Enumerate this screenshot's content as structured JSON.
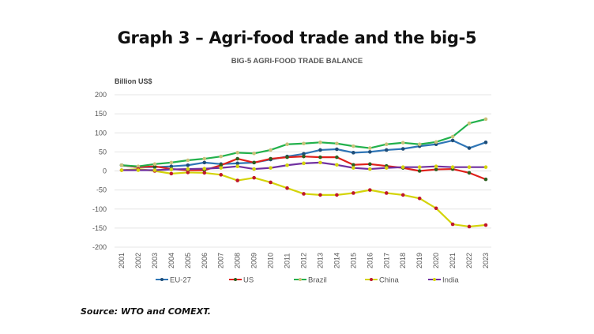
{
  "header": {
    "title": "Graph 3 – Agri-food trade and the big-5"
  },
  "footer": {
    "source": "Source: WTO and COMEXT."
  },
  "chart_data": {
    "type": "line",
    "title": "BIG-5 AGRI-FOOD TRADE BALANCE",
    "xlabel": "",
    "ylabel": "Billion US$",
    "ylim": [
      -200,
      200
    ],
    "yticks": [
      200,
      150,
      100,
      50,
      0,
      -50,
      -100,
      -150,
      -200
    ],
    "grid": true,
    "legend_position": "bottom",
    "x": [
      "2001",
      "2002",
      "2003",
      "2004",
      "2005",
      "2006",
      "2007",
      "2008",
      "2009",
      "2010",
      "2011",
      "2012",
      "2013",
      "2014",
      "2015",
      "2016",
      "2017",
      "2018",
      "2019",
      "2020",
      "2021",
      "2022",
      "2023"
    ],
    "series": [
      {
        "name": "EU-27",
        "color": "#2E75B6",
        "marker": "#1F4E79",
        "values": [
          15,
          10,
          10,
          12,
          15,
          22,
          18,
          20,
          22,
          30,
          38,
          45,
          55,
          57,
          48,
          50,
          55,
          58,
          65,
          70,
          80,
          60,
          75
        ]
      },
      {
        "name": "US",
        "color": "#E0201B",
        "marker": "#2E5E1E",
        "values": [
          15,
          10,
          12,
          5,
          2,
          2,
          15,
          32,
          22,
          32,
          36,
          38,
          36,
          36,
          16,
          18,
          13,
          8,
          0,
          4,
          5,
          -5,
          -22
        ]
      },
      {
        "name": "Brazil",
        "color": "#22B14C",
        "marker": "#C9C27A",
        "values": [
          15,
          12,
          18,
          22,
          28,
          32,
          38,
          48,
          46,
          55,
          70,
          72,
          75,
          72,
          65,
          60,
          70,
          74,
          70,
          76,
          90,
          125,
          136
        ]
      },
      {
        "name": "China",
        "color": "#D4D40A",
        "marker": "#C0172B",
        "values": [
          2,
          5,
          0,
          -7,
          -4,
          -5,
          -10,
          -25,
          -18,
          -30,
          -45,
          -60,
          -63,
          -63,
          -58,
          -50,
          -58,
          -63,
          -72,
          -98,
          -140,
          -146,
          -142
        ]
      },
      {
        "name": "India",
        "color": "#7030A0",
        "marker": "#D4D40A",
        "values": [
          2,
          2,
          2,
          4,
          5,
          6,
          8,
          12,
          5,
          8,
          15,
          20,
          22,
          16,
          8,
          5,
          8,
          10,
          10,
          12,
          10,
          10,
          10
        ]
      }
    ]
  }
}
